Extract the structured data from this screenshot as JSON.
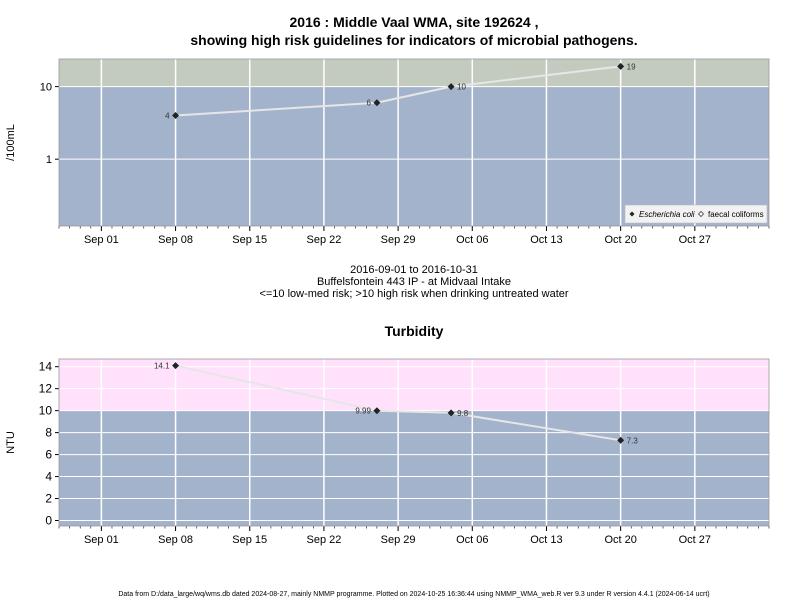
{
  "title_line1": "2016 : Middle Vaal WMA, site 192624 ,",
  "title_line2": "showing high risk guidelines for indicators of microbial pathogens.",
  "subtitle_lines": [
    "2016-09-01 to 2016-10-31",
    "Buffelsfontein 443 IP - at Midvaal Intake",
    "<=10 low-med risk; >10 high risk when drinking untreated water"
  ],
  "footer": "Data from D:/data_large/wq/wms.db dated 2024-08-27, mainly NMMP programme. Plotted on 2024-10-25 16:36:44 using NMMP_WMA_web.R ver 9.3 under R version 4.4.1 (2024-06-14 ucrt)",
  "colors": {
    "low_risk_band": "#a3b3cb",
    "high_risk_band_micro": "#c3cbbf",
    "high_risk_band_turb": "#ffe1fb",
    "line": "#e6e6e6",
    "grid": "#ffffff"
  },
  "chart_data": [
    {
      "type": "line",
      "title": "",
      "xlabel": "",
      "ylabel": "/100mL",
      "yscale": "log",
      "ylim": [
        0.12,
        24
      ],
      "xlim": [
        "2016-08-28",
        "2016-11-03"
      ],
      "x_ticks": [
        "Sep 01",
        "Sep 08",
        "Sep 15",
        "Sep 22",
        "Sep 29",
        "Oct 06",
        "Oct 13",
        "Oct 20",
        "Oct 27"
      ],
      "x_tick_dates": [
        "2016-09-01",
        "2016-09-08",
        "2016-09-15",
        "2016-09-22",
        "2016-09-29",
        "2016-10-06",
        "2016-10-13",
        "2016-10-20",
        "2016-10-27"
      ],
      "y_ticks": [
        1,
        10
      ],
      "y_tick_labels": [
        "1",
        "10"
      ],
      "threshold": 10,
      "grid": true,
      "legend": {
        "placement": "bottom-right",
        "entries": [
          {
            "label": "Escherichia coli",
            "marker": "filled-diamond",
            "italic": true
          },
          {
            "label": "faecal coliforms",
            "marker": "open-diamond",
            "italic": false
          }
        ]
      },
      "series": [
        {
          "name": "Escherichia coli",
          "x": [
            "2016-09-08",
            "2016-09-27",
            "2016-10-04",
            "2016-10-20"
          ],
          "y": [
            4,
            6,
            10,
            19
          ],
          "labels": [
            "4",
            "6",
            "10",
            "19"
          ],
          "label_side": [
            "left",
            "left",
            "right",
            "right"
          ]
        }
      ]
    },
    {
      "type": "line",
      "title": "Turbidity",
      "xlabel": "",
      "ylabel": "NTU",
      "yscale": "linear",
      "ylim": [
        -0.5,
        14.7
      ],
      "xlim": [
        "2016-08-28",
        "2016-11-03"
      ],
      "x_ticks": [
        "Sep 01",
        "Sep 08",
        "Sep 15",
        "Sep 22",
        "Sep 29",
        "Oct 06",
        "Oct 13",
        "Oct 20",
        "Oct 27"
      ],
      "x_tick_dates": [
        "2016-09-01",
        "2016-09-08",
        "2016-09-15",
        "2016-09-22",
        "2016-09-29",
        "2016-10-06",
        "2016-10-13",
        "2016-10-20",
        "2016-10-27"
      ],
      "y_ticks": [
        0,
        2,
        4,
        6,
        8,
        10,
        12,
        14
      ],
      "y_tick_labels": [
        "0",
        "2",
        "4",
        "6",
        "8",
        "10",
        "12",
        "14"
      ],
      "threshold": 10,
      "grid": true,
      "series": [
        {
          "name": "",
          "x": [
            "2016-09-08",
            "2016-09-27",
            "2016-10-04",
            "2016-10-20"
          ],
          "y": [
            14.1,
            9.99,
            9.8,
            7.3
          ],
          "labels": [
            "14.1",
            "9.99",
            "9.8",
            "7.3"
          ],
          "label_side": [
            "left",
            "left",
            "right",
            "right"
          ]
        }
      ]
    }
  ]
}
